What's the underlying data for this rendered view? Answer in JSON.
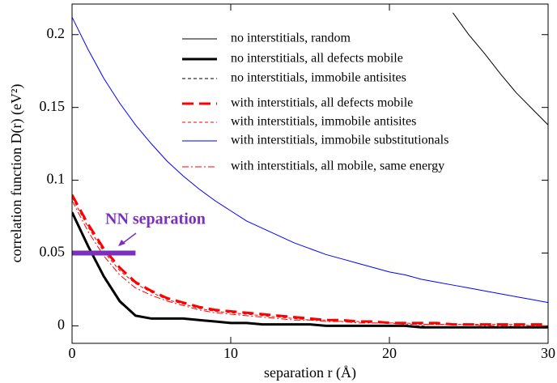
{
  "chart_data": {
    "type": "line",
    "x_label": "separation r (Å)",
    "y_label": "correlation function D(r) (eV²)",
    "xlim": [
      0,
      30
    ],
    "ylim": [
      -0.012,
      0.221
    ],
    "xticks": [
      0,
      10,
      20,
      30
    ],
    "yticks": [
      0,
      0.05,
      0.1,
      0.15,
      0.2
    ],
    "legend_position": "upper right",
    "x": [
      0,
      1,
      2,
      3,
      4,
      5,
      6,
      7,
      8,
      9,
      10,
      11,
      12,
      13,
      14,
      15,
      16,
      17,
      18,
      19,
      20,
      21,
      22,
      23,
      24,
      25,
      26,
      27,
      28,
      29,
      30
    ],
    "series": [
      {
        "name": "no interstitials, random",
        "color": "#000000",
        "width": 1,
        "dash": "solid",
        "values": [
          null,
          null,
          null,
          null,
          null,
          null,
          null,
          null,
          null,
          null,
          null,
          null,
          null,
          null,
          null,
          null,
          null,
          null,
          null,
          null,
          null,
          null,
          null,
          null,
          0.215,
          0.2,
          0.187,
          0.173,
          0.16,
          0.149,
          0.138
        ]
      },
      {
        "name": "no interstitials, all defects mobile",
        "color": "#000000",
        "width": 3,
        "dash": "solid",
        "values": [
          0.078,
          0.055,
          0.034,
          0.017,
          0.007,
          0.005,
          0.005,
          0.005,
          0.004,
          0.003,
          0.002,
          0.002,
          0.001,
          0.001,
          0.001,
          0.001,
          0.0,
          0.0,
          0.0,
          0.0,
          0.0,
          0.0,
          -0.001,
          -0.001,
          -0.001,
          -0.001,
          -0.001,
          -0.001,
          -0.001,
          -0.001,
          -0.001
        ]
      },
      {
        "name": "no interstitials, immobile antisites",
        "color": "#000000",
        "width": 1,
        "dash": "dashed",
        "values": [
          0.077,
          0.054,
          0.033,
          0.016,
          0.007,
          0.005,
          0.005,
          0.005,
          0.004,
          0.003,
          0.002,
          0.002,
          0.001,
          0.001,
          0.001,
          0.001,
          0.0,
          0.0,
          0.0,
          0.0,
          0.0,
          0.0,
          0.0,
          -0.001,
          -0.001,
          -0.001,
          -0.001,
          -0.001,
          -0.001,
          -0.001,
          -0.001
        ]
      },
      {
        "name": "with interstitials, all defects mobile",
        "color": "#ff0000",
        "width": 3,
        "dash": "longdash",
        "values": [
          0.09,
          0.07,
          0.053,
          0.04,
          0.03,
          0.024,
          0.019,
          0.016,
          0.013,
          0.011,
          0.01,
          0.009,
          0.008,
          0.007,
          0.006,
          0.005,
          0.004,
          0.004,
          0.003,
          0.003,
          0.002,
          0.002,
          0.002,
          0.002,
          0.001,
          0.001,
          0.001,
          0.001,
          0.001,
          0.001,
          0.001
        ]
      },
      {
        "name": "with interstitials, immobile antisites",
        "color": "#ff0000",
        "width": 1,
        "dash": "dashed",
        "values": [
          0.088,
          0.068,
          0.051,
          0.038,
          0.029,
          0.023,
          0.018,
          0.015,
          0.012,
          0.01,
          0.009,
          0.008,
          0.007,
          0.006,
          0.005,
          0.004,
          0.004,
          0.003,
          0.003,
          0.002,
          0.002,
          0.002,
          0.001,
          0.001,
          0.001,
          0.001,
          0.001,
          0.001,
          0.001,
          0.0,
          0.0
        ]
      },
      {
        "name": "with interstitials, immobile substitutionals",
        "color": "#0000ff",
        "width": 1,
        "dash": "solid",
        "values": [
          0.212,
          0.19,
          0.17,
          0.153,
          0.138,
          0.125,
          0.113,
          0.103,
          0.094,
          0.086,
          0.079,
          0.072,
          0.067,
          0.062,
          0.057,
          0.053,
          0.049,
          0.046,
          0.043,
          0.04,
          0.037,
          0.035,
          0.032,
          0.03,
          0.028,
          0.026,
          0.024,
          0.022,
          0.02,
          0.018,
          0.016
        ]
      },
      {
        "name": "with interstitials, all mobile, same energy",
        "color": "#ff0000",
        "width": 1,
        "dash": "dashdot",
        "values": [
          0.086,
          0.065,
          0.048,
          0.035,
          0.026,
          0.021,
          0.017,
          0.014,
          0.011,
          0.009,
          0.008,
          0.007,
          0.006,
          0.005,
          0.004,
          0.004,
          0.003,
          0.003,
          0.002,
          0.002,
          0.002,
          0.001,
          0.001,
          0.001,
          0.001,
          0.001,
          0.0,
          0.0,
          0.0,
          0.0,
          0.0
        ]
      }
    ],
    "nn_marker": {
      "label": "NN separation",
      "y": 0.05,
      "x_start": 0,
      "x_end": 4,
      "color": "#7b2fbe"
    }
  }
}
